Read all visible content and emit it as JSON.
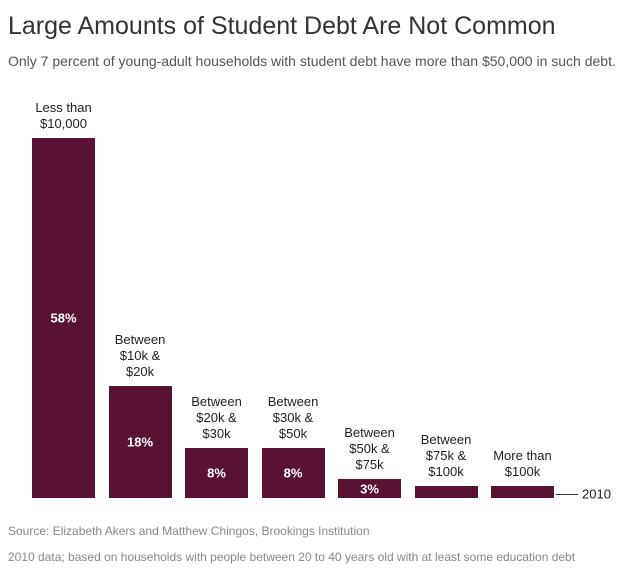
{
  "chart_data": {
    "type": "bar",
    "title": "Large Amounts of Student Debt Are Not Common",
    "subtitle": "Only 7 percent of young-adult households with student debt have more than $50,000 in such debt.",
    "categories": [
      "Less than $10,000",
      "Between $10k & $20k",
      "Between $20k & $30k",
      "Between $30k & $50k",
      "Between $50k & $75k",
      "Between $75k & $100k",
      "More than $100k"
    ],
    "values": [
      58,
      18,
      8,
      8,
      3,
      2,
      2
    ],
    "value_labels": [
      "58%",
      "18%",
      "8%",
      "8%",
      "3%",
      null,
      null
    ],
    "color": "#5a1234",
    "annotation": "2010",
    "source": "Source: Elizabeth Akers and Matthew Chingos, Brookings Institution",
    "note": "2010 data; based on households with people between 20 to 40 years old with at least some education debt"
  }
}
